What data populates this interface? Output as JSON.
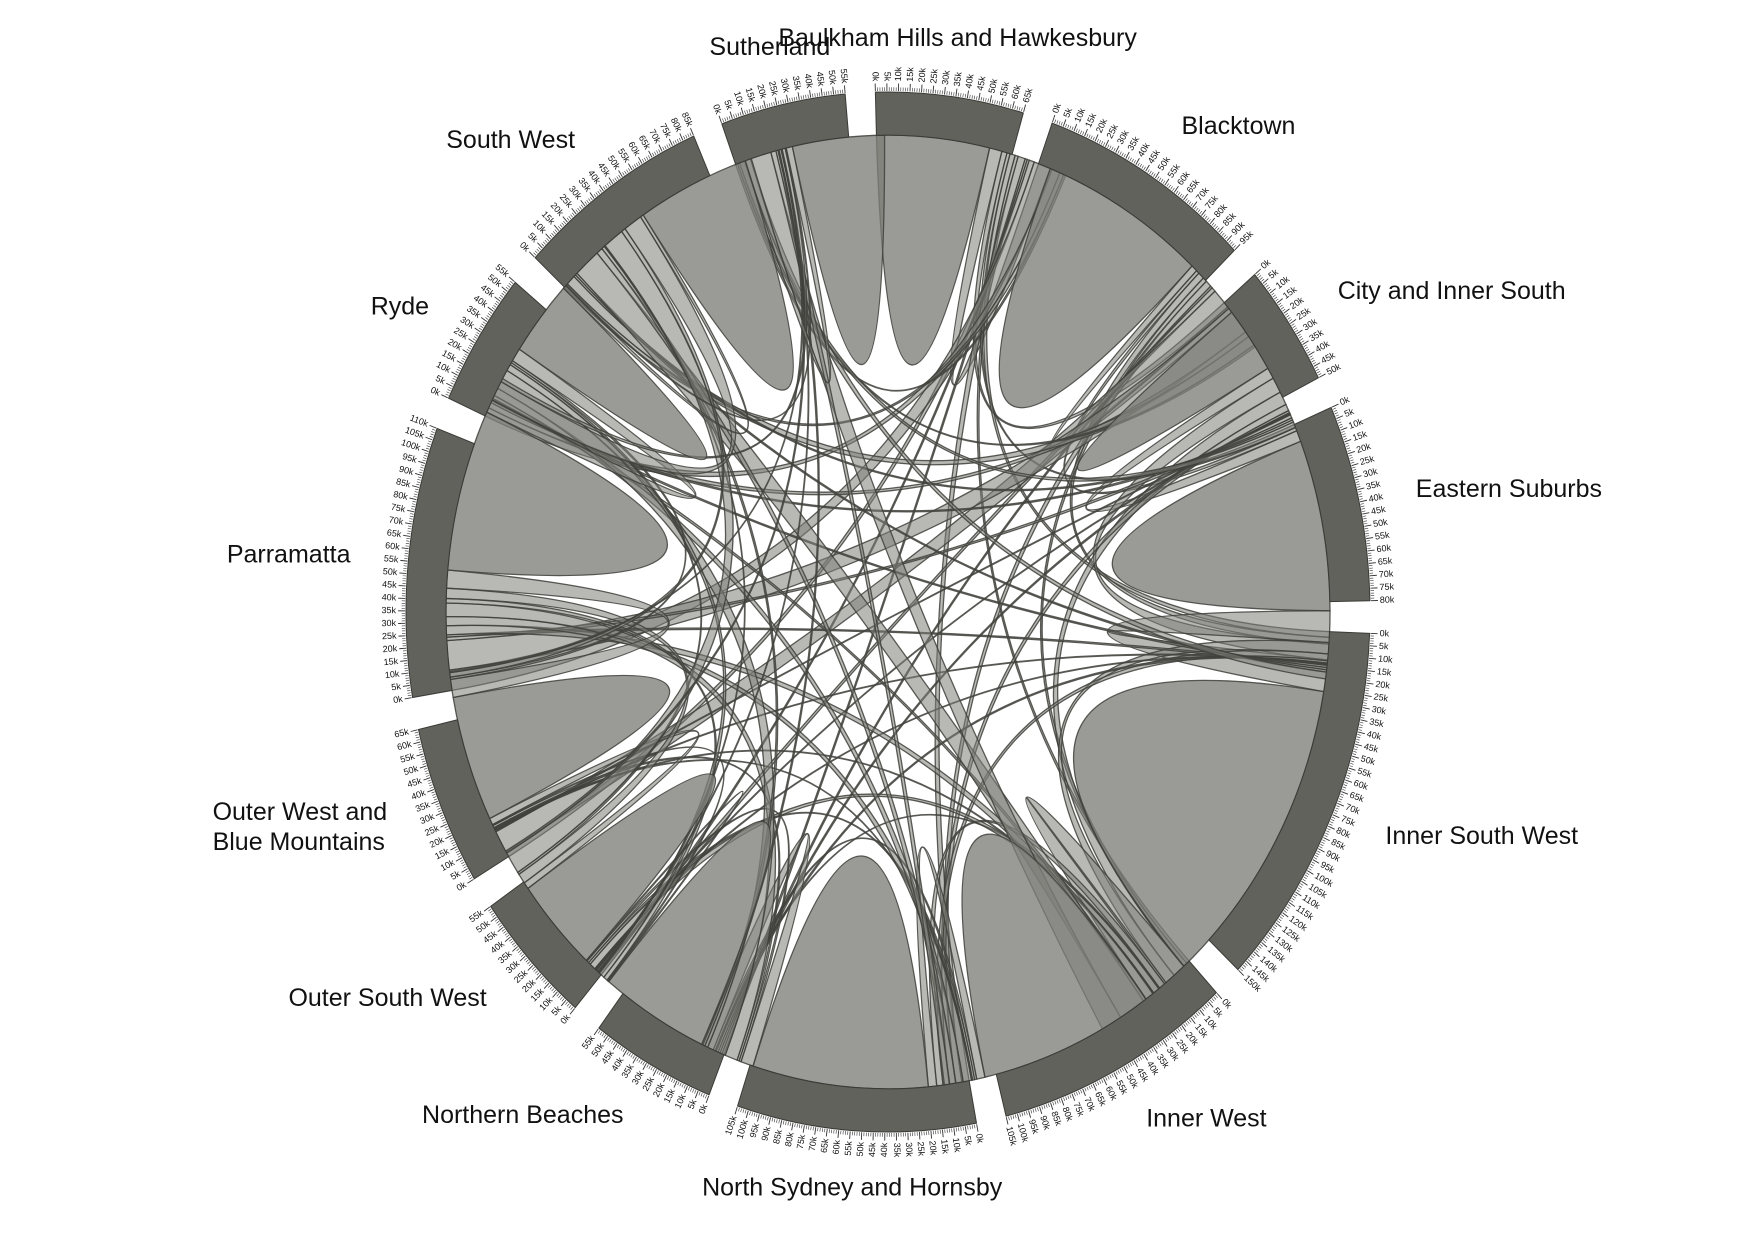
{
  "chart_data": {
    "type": "chord",
    "title": "",
    "colors": {
      "segment_fill": "#61625c",
      "segment_stroke": "#3a3b36",
      "chord_fill": "#7d7e78",
      "chord_stroke": "#3f403b",
      "tick": "#333333"
    },
    "tick_step": 5000,
    "segments": [
      {
        "name": "Baulkham Hills and Hawkesbury",
        "label_lines": [
          "Baulkham Hills and Hawkesbury"
        ],
        "total": 65000
      },
      {
        "name": "Blacktown",
        "label_lines": [
          "Blacktown"
        ],
        "total": 95000
      },
      {
        "name": "City and Inner South",
        "label_lines": [
          "City and Inner South"
        ],
        "total": 50000
      },
      {
        "name": "Eastern Suburbs",
        "label_lines": [
          "Eastern Suburbs"
        ],
        "total": 80000
      },
      {
        "name": "Inner South West",
        "label_lines": [
          "Inner South West"
        ],
        "total": 150000
      },
      {
        "name": "Inner West",
        "label_lines": [
          "Inner West"
        ],
        "total": 105000
      },
      {
        "name": "North Sydney and Hornsby",
        "label_lines": [
          "North Sydney and Hornsby"
        ],
        "total": 105000
      },
      {
        "name": "Northern Beaches",
        "label_lines": [
          "Northern Beaches"
        ],
        "total": 55000
      },
      {
        "name": "Outer South West",
        "label_lines": [
          "Outer South West"
        ],
        "total": 55000
      },
      {
        "name": "Outer West and Blue Mountains",
        "label_lines": [
          "Outer West and",
          "Blue Mountains"
        ],
        "total": 65000
      },
      {
        "name": "Parramatta",
        "label_lines": [
          "Parramatta"
        ],
        "total": 110000
      },
      {
        "name": "Ryde",
        "label_lines": [
          "Ryde"
        ],
        "total": 55000
      },
      {
        "name": "South West",
        "label_lines": [
          "South West"
        ],
        "total": 85000
      },
      {
        "name": "Sutherland",
        "label_lines": [
          "Sutherland"
        ],
        "total": 55000
      }
    ],
    "flows": [
      {
        "a": 0,
        "b": 0,
        "value": 27000
      },
      {
        "a": 0,
        "b": 1,
        "value": 6000
      },
      {
        "a": 0,
        "b": 2,
        "value": 2500
      },
      {
        "a": 0,
        "b": 3,
        "value": 1500
      },
      {
        "a": 0,
        "b": 4,
        "value": 2500
      },
      {
        "a": 0,
        "b": 5,
        "value": 1500
      },
      {
        "a": 0,
        "b": 6,
        "value": 3500
      },
      {
        "a": 0,
        "b": 7,
        "value": 1000
      },
      {
        "a": 0,
        "b": 8,
        "value": 1000
      },
      {
        "a": 0,
        "b": 9,
        "value": 2500
      },
      {
        "a": 0,
        "b": 10,
        "value": 9000
      },
      {
        "a": 0,
        "b": 11,
        "value": 4000
      },
      {
        "a": 0,
        "b": 12,
        "value": 2000
      },
      {
        "a": 0,
        "b": 13,
        "value": 1000
      },
      {
        "a": 1,
        "b": 1,
        "value": 40000
      },
      {
        "a": 1,
        "b": 2,
        "value": 3000
      },
      {
        "a": 1,
        "b": 3,
        "value": 1500
      },
      {
        "a": 1,
        "b": 4,
        "value": 3000
      },
      {
        "a": 1,
        "b": 5,
        "value": 2000
      },
      {
        "a": 1,
        "b": 6,
        "value": 3000
      },
      {
        "a": 1,
        "b": 7,
        "value": 1000
      },
      {
        "a": 1,
        "b": 8,
        "value": 2000
      },
      {
        "a": 1,
        "b": 9,
        "value": 10000
      },
      {
        "a": 1,
        "b": 10,
        "value": 13000
      },
      {
        "a": 1,
        "b": 11,
        "value": 2500
      },
      {
        "a": 1,
        "b": 12,
        "value": 4500
      },
      {
        "a": 1,
        "b": 13,
        "value": 1000
      },
      {
        "a": 2,
        "b": 2,
        "value": 15000
      },
      {
        "a": 2,
        "b": 3,
        "value": 5000
      },
      {
        "a": 2,
        "b": 4,
        "value": 7000
      },
      {
        "a": 2,
        "b": 5,
        "value": 6000
      },
      {
        "a": 2,
        "b": 6,
        "value": 3000
      },
      {
        "a": 2,
        "b": 7,
        "value": 1000
      },
      {
        "a": 2,
        "b": 8,
        "value": 500
      },
      {
        "a": 2,
        "b": 9,
        "value": 500
      },
      {
        "a": 2,
        "b": 10,
        "value": 1500
      },
      {
        "a": 2,
        "b": 11,
        "value": 1000
      },
      {
        "a": 2,
        "b": 12,
        "value": 1000
      },
      {
        "a": 2,
        "b": 13,
        "value": 2500
      },
      {
        "a": 3,
        "b": 3,
        "value": 38000
      },
      {
        "a": 3,
        "b": 4,
        "value": 14000
      },
      {
        "a": 3,
        "b": 5,
        "value": 5000
      },
      {
        "a": 3,
        "b": 6,
        "value": 3000
      },
      {
        "a": 3,
        "b": 7,
        "value": 1000
      },
      {
        "a": 3,
        "b": 8,
        "value": 500
      },
      {
        "a": 3,
        "b": 9,
        "value": 500
      },
      {
        "a": 3,
        "b": 10,
        "value": 1000
      },
      {
        "a": 3,
        "b": 11,
        "value": 1000
      },
      {
        "a": 3,
        "b": 12,
        "value": 1000
      },
      {
        "a": 3,
        "b": 13,
        "value": 3000
      },
      {
        "a": 4,
        "b": 4,
        "value": 70000
      },
      {
        "a": 4,
        "b": 5,
        "value": 12000
      },
      {
        "a": 4,
        "b": 6,
        "value": 3000
      },
      {
        "a": 4,
        "b": 7,
        "value": 500
      },
      {
        "a": 4,
        "b": 8,
        "value": 3000
      },
      {
        "a": 4,
        "b": 9,
        "value": 500
      },
      {
        "a": 4,
        "b": 10,
        "value": 4000
      },
      {
        "a": 4,
        "b": 11,
        "value": 1500
      },
      {
        "a": 4,
        "b": 12,
        "value": 13000
      },
      {
        "a": 4,
        "b": 13,
        "value": 10000
      },
      {
        "a": 5,
        "b": 5,
        "value": 42000
      },
      {
        "a": 5,
        "b": 6,
        "value": 4000
      },
      {
        "a": 5,
        "b": 7,
        "value": 1000
      },
      {
        "a": 5,
        "b": 8,
        "value": 1000
      },
      {
        "a": 5,
        "b": 9,
        "value": 500
      },
      {
        "a": 5,
        "b": 10,
        "value": 4000
      },
      {
        "a": 5,
        "b": 11,
        "value": 3500
      },
      {
        "a": 5,
        "b": 12,
        "value": 3000
      },
      {
        "a": 5,
        "b": 13,
        "value": 2500
      },
      {
        "a": 6,
        "b": 6,
        "value": 42000
      },
      {
        "a": 6,
        "b": 7,
        "value": 6000
      },
      {
        "a": 6,
        "b": 8,
        "value": 1000
      },
      {
        "a": 6,
        "b": 9,
        "value": 1000
      },
      {
        "a": 6,
        "b": 10,
        "value": 6000
      },
      {
        "a": 6,
        "b": 11,
        "value": 9000
      },
      {
        "a": 6,
        "b": 12,
        "value": 1500
      },
      {
        "a": 6,
        "b": 13,
        "value": 1000
      },
      {
        "a": 7,
        "b": 7,
        "value": 26000
      },
      {
        "a": 7,
        "b": 8,
        "value": 500
      },
      {
        "a": 7,
        "b": 9,
        "value": 500
      },
      {
        "a": 7,
        "b": 10,
        "value": 2000
      },
      {
        "a": 7,
        "b": 11,
        "value": 3000
      },
      {
        "a": 7,
        "b": 12,
        "value": 500
      },
      {
        "a": 7,
        "b": 13,
        "value": 500
      },
      {
        "a": 8,
        "b": 8,
        "value": 21000
      },
      {
        "a": 8,
        "b": 9,
        "value": 3000
      },
      {
        "a": 8,
        "b": 10,
        "value": 4500
      },
      {
        "a": 8,
        "b": 11,
        "value": 1000
      },
      {
        "a": 8,
        "b": 12,
        "value": 10000
      },
      {
        "a": 8,
        "b": 13,
        "value": 1000
      },
      {
        "a": 9,
        "b": 9,
        "value": 28000
      },
      {
        "a": 9,
        "b": 10,
        "value": 8000
      },
      {
        "a": 9,
        "b": 11,
        "value": 1000
      },
      {
        "a": 9,
        "b": 12,
        "value": 2000
      },
      {
        "a": 9,
        "b": 13,
        "value": 500
      },
      {
        "a": 10,
        "b": 10,
        "value": 36000
      },
      {
        "a": 10,
        "b": 11,
        "value": 6000
      },
      {
        "a": 10,
        "b": 12,
        "value": 9000
      },
      {
        "a": 10,
        "b": 13,
        "value": 1500
      },
      {
        "a": 11,
        "b": 11,
        "value": 17000
      },
      {
        "a": 11,
        "b": 12,
        "value": 1500
      },
      {
        "a": 11,
        "b": 13,
        "value": 500
      },
      {
        "a": 12,
        "b": 12,
        "value": 27000
      },
      {
        "a": 12,
        "b": 13,
        "value": 3000
      },
      {
        "a": 13,
        "b": 13,
        "value": 22000
      }
    ]
  }
}
